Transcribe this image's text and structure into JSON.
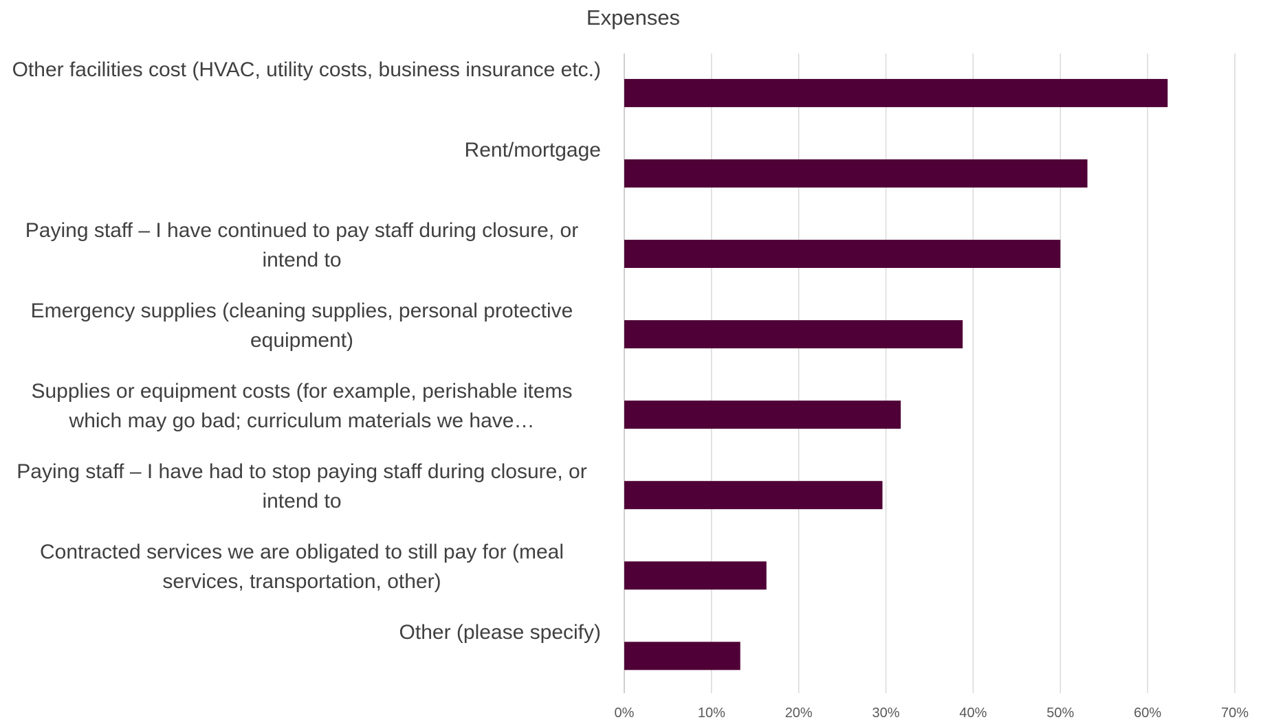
{
  "chart_data": {
    "type": "bar",
    "orientation": "horizontal",
    "title": "Expenses",
    "categories": [
      "Other facilities cost (HVAC, utility costs, business insurance etc.)",
      "Rent/mortgage",
      "Paying staff – I have continued to pay staff during closure, or intend to",
      "Emergency supplies (cleaning supplies, personal protective equipment)",
      "Supplies or equipment costs (for example, perishable items which may go bad; curriculum materials we have…",
      "Paying staff – I have had to stop paying staff during closure, or intend to",
      "Contracted services we are obligated to still pay for (meal services, transportation, other)",
      "Other (please specify)"
    ],
    "values": [
      62.3,
      53.1,
      50.0,
      38.8,
      31.7,
      29.6,
      16.3,
      13.3
    ],
    "color": "#4f0036",
    "xlim": [
      0,
      70
    ],
    "xticks": [
      {
        "value": 0,
        "label": "0%"
      },
      {
        "value": 10,
        "label": "10%"
      },
      {
        "value": 20,
        "label": "20%"
      },
      {
        "value": 30,
        "label": "30%"
      },
      {
        "value": 40,
        "label": "40%"
      },
      {
        "value": 50,
        "label": "50%"
      },
      {
        "value": 60,
        "label": "60%"
      },
      {
        "value": 70,
        "label": "70%"
      }
    ],
    "grid": true
  }
}
